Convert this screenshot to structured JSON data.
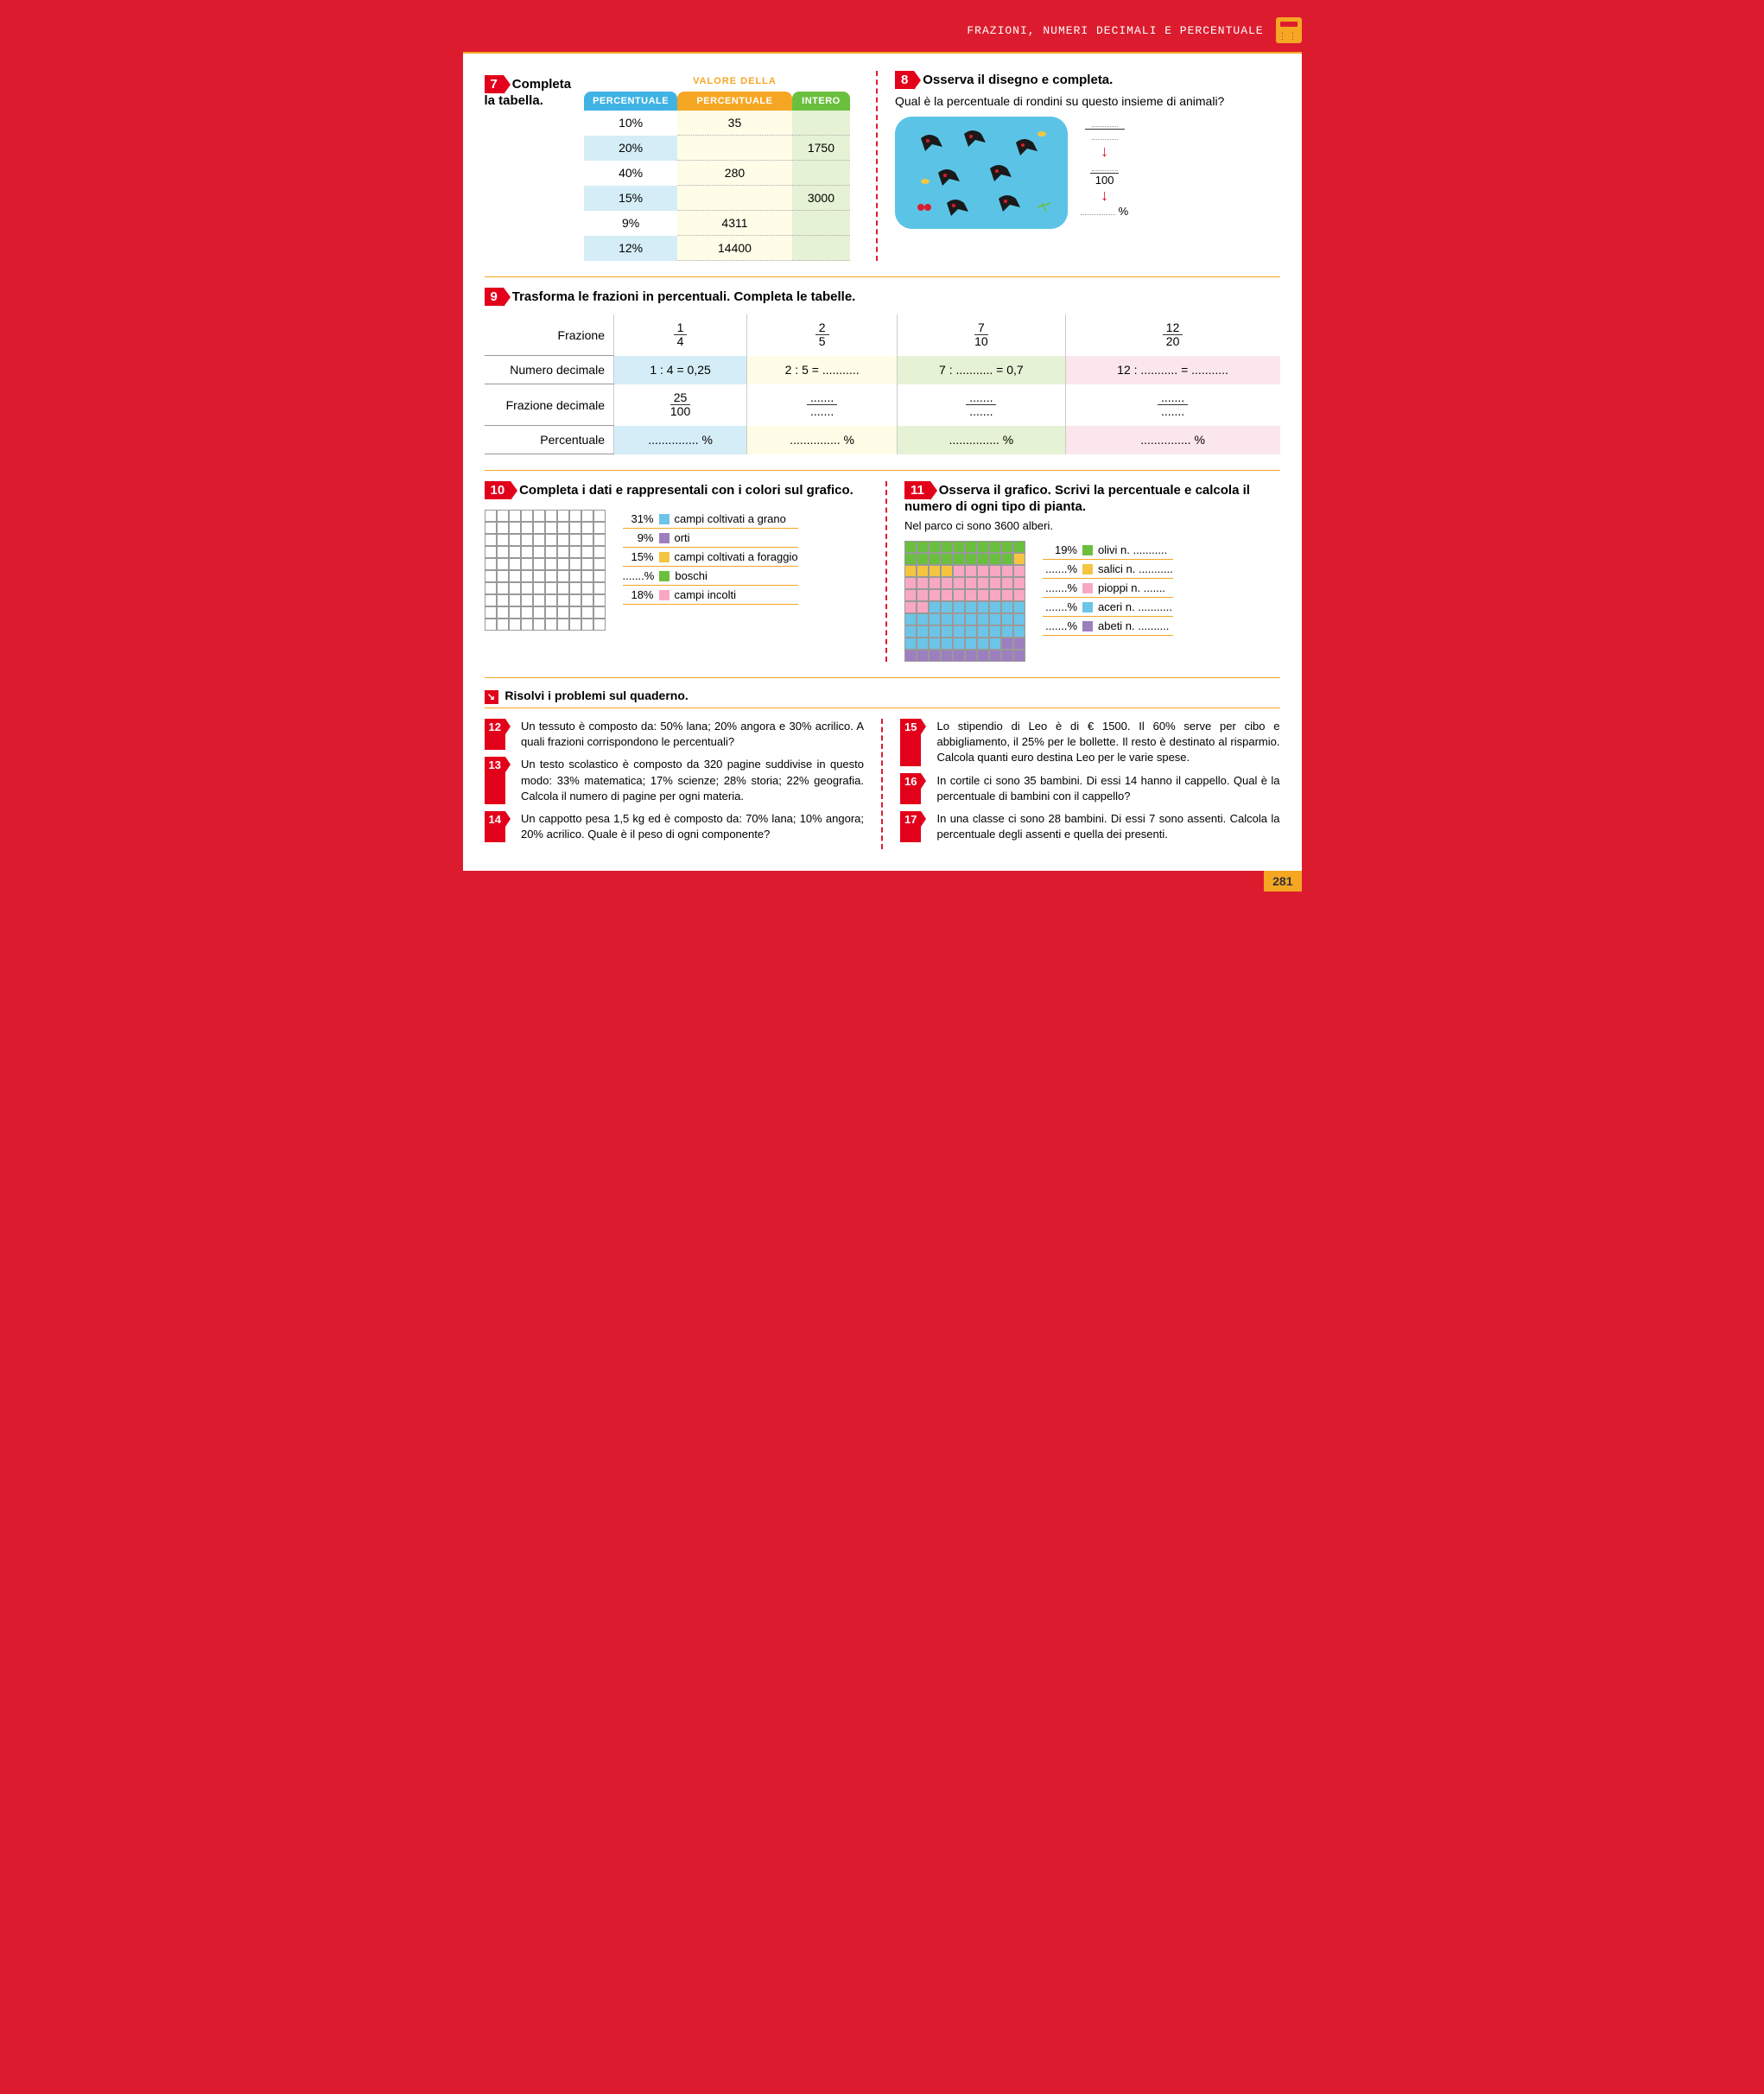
{
  "header": {
    "title": "FRAZIONI, NUMERI DECIMALI E PERCENTUALE"
  },
  "colors": {
    "blue": "#3fb3e4",
    "lightblue": "#d5edf6",
    "orange": "#f5a623",
    "lightyellow": "#fffde8",
    "green": "#6bbf3f",
    "lightgreen": "#e6f2d5",
    "pink": "#f8a8c2",
    "lightpink": "#fce6ed",
    "purple": "#8a6bbf",
    "grano": "#6cc5e8",
    "orti": "#9d7fc0",
    "foraggio": "#f5c542",
    "boschi": "#6bbf3f",
    "incolti": "#f8a8c2"
  },
  "ex7": {
    "num": "7",
    "title": "Completa la tabella.",
    "super_header": "VALORE DELLA",
    "headers": [
      "PERCENTUALE",
      "PERCENTUALE",
      "INTERO"
    ],
    "rows": [
      {
        "pct": "10%",
        "val": "35",
        "int": "",
        "alt": false
      },
      {
        "pct": "20%",
        "val": "",
        "int": "1750",
        "alt": true
      },
      {
        "pct": "40%",
        "val": "280",
        "int": "",
        "alt": false
      },
      {
        "pct": "15%",
        "val": "",
        "int": "3000",
        "alt": true
      },
      {
        "pct": "9%",
        "val": "4311",
        "int": "",
        "alt": false
      },
      {
        "pct": "12%",
        "val": "14400",
        "int": "",
        "alt": true
      }
    ]
  },
  "ex8": {
    "num": "8",
    "title": "Osserva il disegno e completa.",
    "question": "Qual è la percentuale di rondini su questo insieme di animali?",
    "denom": "100",
    "pct_suffix": "%"
  },
  "ex9": {
    "num": "9",
    "title": "Trasforma le frazioni in percentuali. Completa le tabelle.",
    "row_labels": [
      "Frazione",
      "Numero decimale",
      "Frazione decimale",
      "Percentuale"
    ],
    "cols": [
      {
        "cls": "cb",
        "frac_n": "1",
        "frac_d": "4",
        "dec": "1 : 4 = 0,25",
        "fdec_n": "25",
        "fdec_d": "100",
        "pct": "............... %"
      },
      {
        "cls": "cy",
        "frac_n": "2",
        "frac_d": "5",
        "dec": "2 : 5 = ...........",
        "fdec_n": ".......",
        "fdec_d": ".......",
        "pct": "............... %"
      },
      {
        "cls": "cg",
        "frac_n": "7",
        "frac_d": "10",
        "dec": "7 : ........... = 0,7",
        "fdec_n": ".......",
        "fdec_d": ".......",
        "pct": "............... %"
      },
      {
        "cls": "cp",
        "frac_n": "12",
        "frac_d": "20",
        "dec": "12 : ........... = ...........",
        "fdec_n": ".......",
        "fdec_d": ".......",
        "pct": "............... %"
      }
    ]
  },
  "ex10": {
    "num": "10",
    "title": "Completa i dati e rappresentali con i colori sul grafico.",
    "items": [
      {
        "pct": "31%",
        "color": "#6cc5e8",
        "label": "campi coltivati a grano"
      },
      {
        "pct": "9%",
        "color": "#9d7fc0",
        "label": "orti"
      },
      {
        "pct": "15%",
        "color": "#f5c542",
        "label": "campi coltivati a foraggio"
      },
      {
        "pct": ".......%",
        "color": "#6bbf3f",
        "label": "boschi"
      },
      {
        "pct": "18%",
        "color": "#f8a8c2",
        "label": "campi incolti"
      }
    ]
  },
  "ex11": {
    "num": "11",
    "title": "Osserva il grafico. Scrivi la percentuale e calcola il numero di ogni tipo di pianta.",
    "intro": "Nel parco ci sono 3600 alberi.",
    "grid_colors": [
      "#6bbf3f",
      "#6bbf3f",
      "#6bbf3f",
      "#6bbf3f",
      "#6bbf3f",
      "#6bbf3f",
      "#6bbf3f",
      "#6bbf3f",
      "#6bbf3f",
      "#6bbf3f",
      "#6bbf3f",
      "#6bbf3f",
      "#6bbf3f",
      "#6bbf3f",
      "#6bbf3f",
      "#6bbf3f",
      "#6bbf3f",
      "#6bbf3f",
      "#6bbf3f",
      "#f5c542",
      "#f5c542",
      "#f5c542",
      "#f5c542",
      "#f5c542",
      "#f8a8c2",
      "#f8a8c2",
      "#f8a8c2",
      "#f8a8c2",
      "#f8a8c2",
      "#f8a8c2",
      "#f8a8c2",
      "#f8a8c2",
      "#f8a8c2",
      "#f8a8c2",
      "#f8a8c2",
      "#f8a8c2",
      "#f8a8c2",
      "#f8a8c2",
      "#f8a8c2",
      "#f8a8c2",
      "#f8a8c2",
      "#f8a8c2",
      "#f8a8c2",
      "#f8a8c2",
      "#f8a8c2",
      "#f8a8c2",
      "#f8a8c2",
      "#f8a8c2",
      "#f8a8c2",
      "#f8a8c2",
      "#f8a8c2",
      "#f8a8c2",
      "#6cc5e8",
      "#6cc5e8",
      "#6cc5e8",
      "#6cc5e8",
      "#6cc5e8",
      "#6cc5e8",
      "#6cc5e8",
      "#6cc5e8",
      "#6cc5e8",
      "#6cc5e8",
      "#6cc5e8",
      "#6cc5e8",
      "#6cc5e8",
      "#6cc5e8",
      "#6cc5e8",
      "#6cc5e8",
      "#6cc5e8",
      "#6cc5e8",
      "#6cc5e8",
      "#6cc5e8",
      "#6cc5e8",
      "#6cc5e8",
      "#6cc5e8",
      "#6cc5e8",
      "#6cc5e8",
      "#6cc5e8",
      "#6cc5e8",
      "#6cc5e8",
      "#6cc5e8",
      "#6cc5e8",
      "#6cc5e8",
      "#6cc5e8",
      "#6cc5e8",
      "#6cc5e8",
      "#6cc5e8",
      "#6cc5e8",
      "#9d7fc0",
      "#9d7fc0",
      "#9d7fc0",
      "#9d7fc0",
      "#9d7fc0",
      "#9d7fc0",
      "#9d7fc0",
      "#9d7fc0",
      "#9d7fc0",
      "#9d7fc0",
      "#9d7fc0",
      "#9d7fc0"
    ],
    "legend": [
      {
        "pct": "19%",
        "color": "#6bbf3f",
        "label": "olivi n. ..........."
      },
      {
        "pct": ".......%",
        "color": "#f5c542",
        "label": "salici n. ..........."
      },
      {
        "pct": ".......%",
        "color": "#f8a8c2",
        "label": "pioppi n. ......."
      },
      {
        "pct": ".......%",
        "color": "#6cc5e8",
        "label": "aceri n. ..........."
      },
      {
        "pct": ".......%",
        "color": "#9d7fc0",
        "label": "abeti n. .........."
      }
    ]
  },
  "problems": {
    "heading": "Risolvi i problemi sul quaderno.",
    "left": [
      {
        "num": "12",
        "text": "Un tessuto è composto da: 50% lana; 20% angora e 30% acrilico. A quali frazioni corrispondono le percentuali?"
      },
      {
        "num": "13",
        "text": "Un testo scolastico è composto da 320 pagine suddivise in questo modo: 33% matematica; 17% scienze; 28% storia; 22% geografia. Calcola il numero di pagine per ogni materia."
      },
      {
        "num": "14",
        "text": "Un cappotto pesa 1,5 kg ed è composto da: 70% lana; 10% angora; 20% acrilico. Quale è il peso di ogni componente?"
      }
    ],
    "right": [
      {
        "num": "15",
        "text": "Lo stipendio di Leo è di € 1500. Il 60% serve per cibo e abbigliamento, il 25% per le bollette. Il resto è destinato al risparmio. Calcola quanti euro destina Leo per le varie spese."
      },
      {
        "num": "16",
        "text": "In cortile ci sono 35 bambini. Di essi 14 hanno il cappello. Qual è la percentuale di bambini con il cappello?"
      },
      {
        "num": "17",
        "text": "In una classe ci sono 28 bambini. Di essi 7 sono assenti. Calcola la percentuale degli assenti e quella dei presenti."
      }
    ]
  },
  "page_number": "281"
}
